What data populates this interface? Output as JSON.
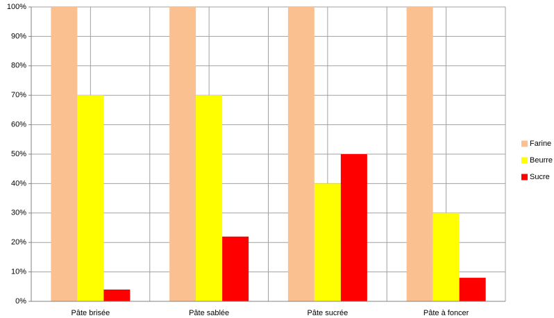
{
  "chart_data": {
    "type": "bar",
    "categories": [
      "Pâte brisée",
      "Pâte sablée",
      "Pâte sucrée",
      "Pâte à foncer"
    ],
    "series": [
      {
        "name": "Farine",
        "color": "#fac090",
        "values": [
          100,
          100,
          100,
          100
        ]
      },
      {
        "name": "Beurre",
        "color": "#ffff00",
        "values": [
          70,
          70,
          40,
          30
        ]
      },
      {
        "name": "Sucre",
        "color": "#ff0000",
        "values": [
          4,
          22,
          50,
          8
        ]
      }
    ],
    "ylim": [
      0,
      100
    ],
    "yticks": [
      {
        "value": 0,
        "label": "0%"
      },
      {
        "value": 10,
        "label": "10%"
      },
      {
        "value": 20,
        "label": "20%"
      },
      {
        "value": 30,
        "label": "30%"
      },
      {
        "value": 40,
        "label": "40%"
      },
      {
        "value": 50,
        "label": "50%"
      },
      {
        "value": 60,
        "label": "60%"
      },
      {
        "value": 70,
        "label": "70%"
      },
      {
        "value": 80,
        "label": "80%"
      },
      {
        "value": 90,
        "label": "90%"
      },
      {
        "value": 100,
        "label": "100%"
      }
    ],
    "grid": true,
    "legend": "right"
  }
}
